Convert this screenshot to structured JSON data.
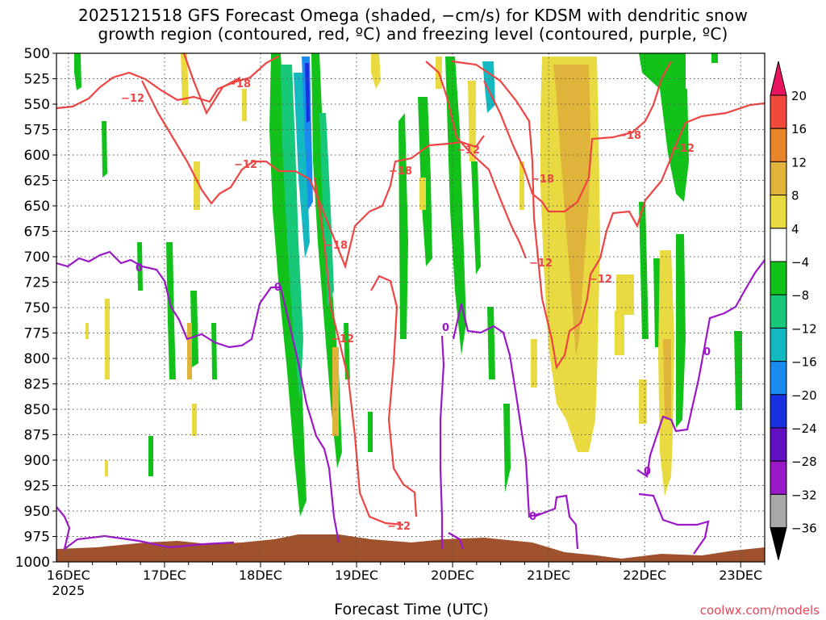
{
  "title_lines": [
    "2025121518 GFS Forecast Omega (shaded, −cm/s) for KDSM with dendritic snow",
    "growth region (contoured, red, ºC) and freezing level (contoured, purple, ºC)"
  ],
  "credit": "coolwx.com/models",
  "colors": {
    "snow_growth_contour": "#ef4444",
    "freezing_contour": "#9b18c8",
    "terrain": "#a0522d",
    "grid": "#555555"
  },
  "chart_data": {
    "type": "heatmap",
    "title": "2025121518 GFS Forecast Omega (shaded, −cm/s) for KDSM with dendritic snow growth region (contoured, red, ºC) and freezing level (contoured, purple, ºC)",
    "xlabel": "Forecast Time (UTC)",
    "ylabel": "",
    "x_ticks": [
      {
        "label": "16DEC",
        "sub": "2025"
      },
      {
        "label": "17DEC",
        "sub": ""
      },
      {
        "label": "18DEC",
        "sub": ""
      },
      {
        "label": "19DEC",
        "sub": ""
      },
      {
        "label": "20DEC",
        "sub": ""
      },
      {
        "label": "21DEC",
        "sub": ""
      },
      {
        "label": "22DEC",
        "sub": ""
      },
      {
        "label": "23DEC",
        "sub": ""
      }
    ],
    "x_range_days": [
      15.875,
      23.25
    ],
    "y_ticks_hpa": [
      500,
      525,
      550,
      575,
      600,
      625,
      650,
      675,
      700,
      725,
      750,
      775,
      800,
      825,
      850,
      875,
      900,
      925,
      950,
      975,
      1000
    ],
    "y_range_hpa": [
      500,
      1000
    ],
    "y_scale": "pressure (inverted)",
    "grid": true,
    "colorbar": {
      "orientation": "vertical",
      "position": "right",
      "levels": [
        20,
        16,
        12,
        8,
        4,
        -4,
        -8,
        -12,
        -16,
        -20,
        -24,
        -28,
        -32,
        -36
      ],
      "colors": [
        "#e8145f",
        "#f04a3c",
        "#e8842a",
        "#e0b43a",
        "#e8da40",
        "#ffffff",
        "#12c21a",
        "#16c878",
        "#14b8c0",
        "#1a8cf0",
        "#1830e0",
        "#6010c0",
        "#9a18c8",
        "#a8a8a8",
        "#000000"
      ]
    },
    "contour_labels": {
      "snow_growth": [
        "-12",
        "-18"
      ],
      "freezing": [
        "0"
      ]
    }
  }
}
